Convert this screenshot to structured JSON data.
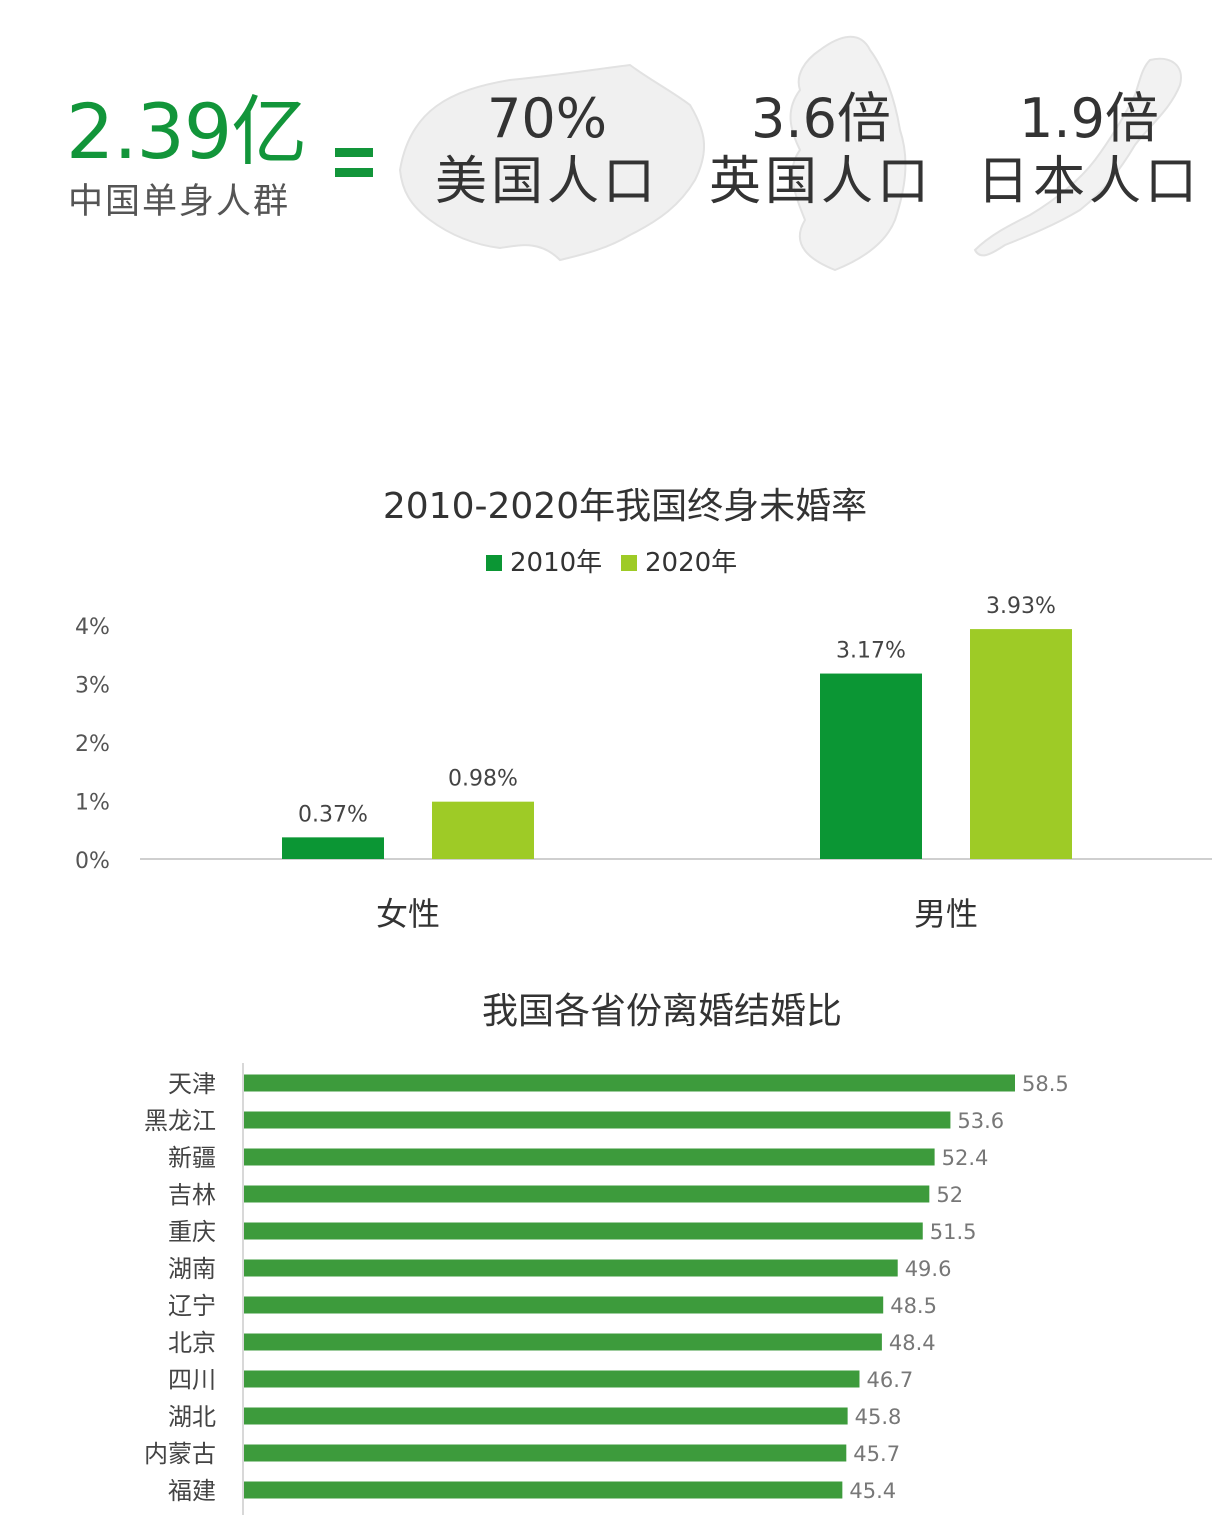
{
  "hero": {
    "big_number": "2.39亿",
    "big_caption": "中国单身人群",
    "comparisons": [
      {
        "value": "70%",
        "label": "美国人口"
      },
      {
        "value": "3.6倍",
        "label": "英国人口"
      },
      {
        "value": "1.9倍",
        "label": "日本人口"
      }
    ],
    "colors": {
      "accent": "#12953a",
      "map": "#e6e6e6"
    }
  },
  "chart_data": [
    {
      "type": "bar",
      "title": "2010-2020年我国终身未婚率",
      "categories": [
        "女性",
        "男性"
      ],
      "series": [
        {
          "name": "2010年",
          "values": [
            0.37,
            3.17
          ],
          "labels": [
            "0.37%",
            "3.17%"
          ],
          "color": "#0b9634"
        },
        {
          "name": "2020年",
          "values": [
            0.98,
            3.93
          ],
          "labels": [
            "0.98%",
            "3.93%"
          ],
          "color": "#9ecb26"
        }
      ],
      "yticks": [
        "0%",
        "1%",
        "2%",
        "3%",
        "4%"
      ],
      "ylim": [
        0,
        4
      ],
      "legend": "top-center",
      "grid": false
    },
    {
      "type": "bar",
      "orientation": "horizontal",
      "title": "我国各省份离婚结婚比",
      "categories": [
        "天津",
        "黑龙江",
        "新疆",
        "吉林",
        "重庆",
        "湖南",
        "辽宁",
        "北京",
        "四川",
        "湖北",
        "内蒙古",
        "福建"
      ],
      "values": [
        58.5,
        53.6,
        52.4,
        52,
        51.5,
        49.6,
        48.5,
        48.4,
        46.7,
        45.8,
        45.7,
        45.4
      ],
      "labels": [
        "58.5",
        "53.6",
        "52.4",
        "52",
        "51.5",
        "49.6",
        "48.5",
        "48.4",
        "46.7",
        "45.8",
        "45.7",
        "45.4"
      ],
      "color": "#3d9b3c",
      "grid": false
    }
  ]
}
